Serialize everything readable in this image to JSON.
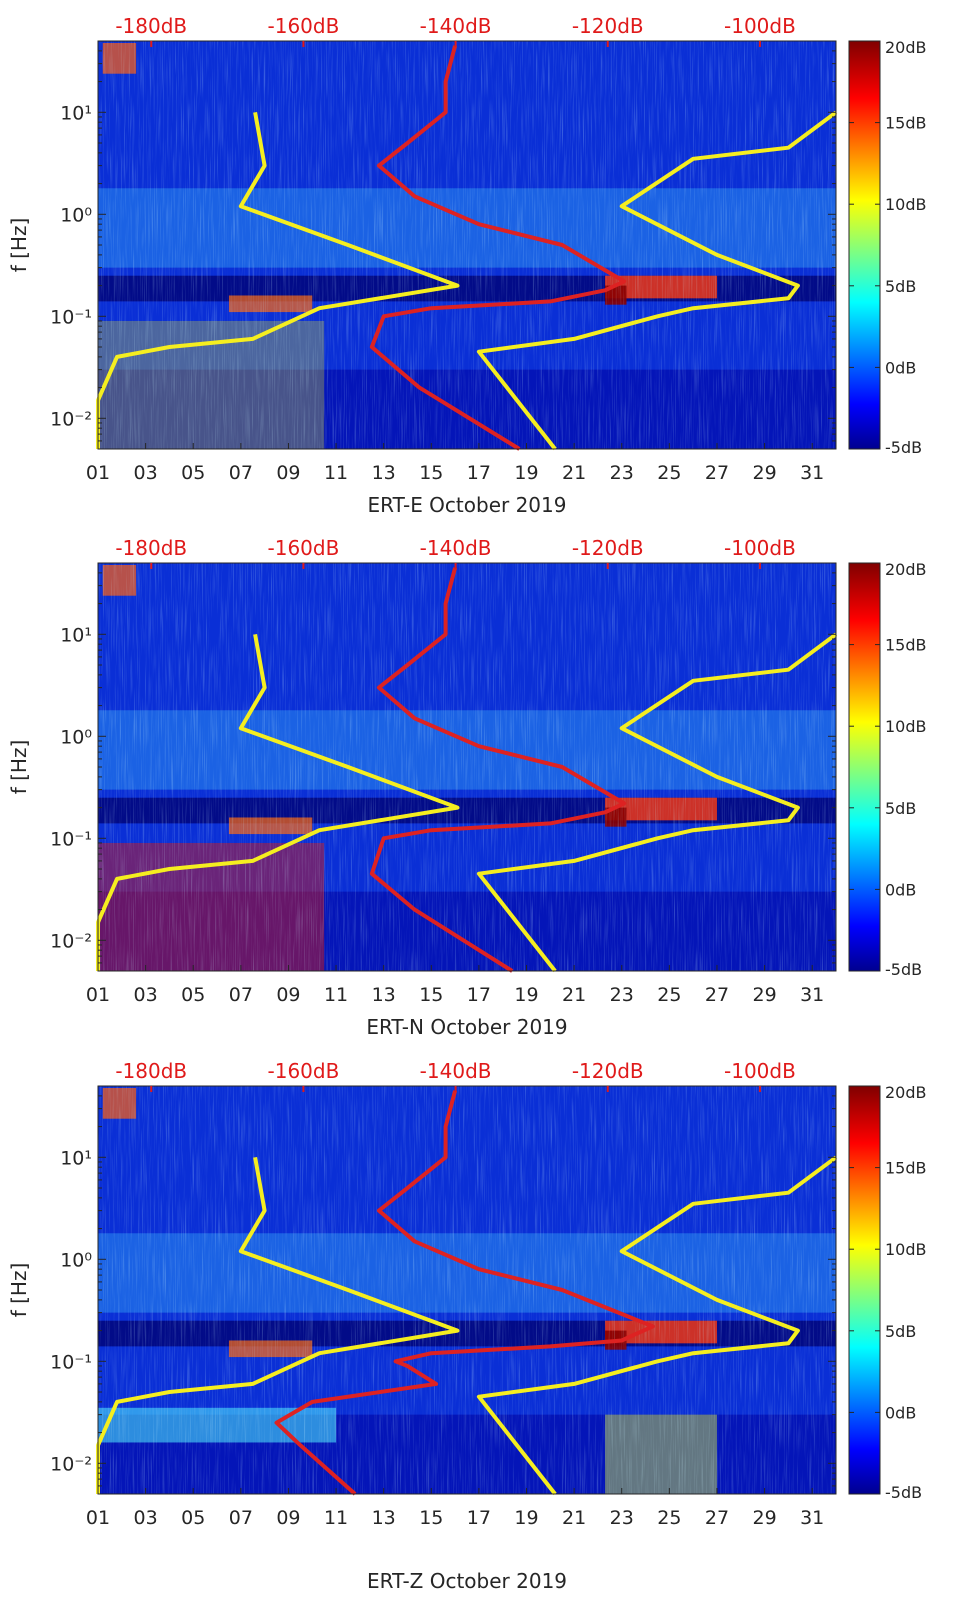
{
  "chart_data": [
    {
      "type": "heatmap",
      "title": "ERT-E October 2019",
      "xlabel": "ERT-E October 2019",
      "ylabel": "f [Hz]",
      "x_ticks": [
        "01",
        "03",
        "05",
        "07",
        "09",
        "11",
        "13",
        "15",
        "17",
        "19",
        "21",
        "23",
        "25",
        "27",
        "29",
        "31"
      ],
      "x_tick_days": [
        1,
        3,
        5,
        7,
        9,
        11,
        13,
        15,
        17,
        19,
        21,
        23,
        25,
        27,
        29,
        31
      ],
      "xlim": [
        1,
        32
      ],
      "y_ticks": [
        "10⁻²",
        "10⁻¹",
        "10⁰",
        "10¹"
      ],
      "y_tick_values": [
        0.01,
        0.1,
        1,
        10
      ],
      "ylim": [
        0.005,
        50
      ],
      "yscale": "log",
      "top_axis_ticks": [
        "-180dB",
        "-160dB",
        "-140dB",
        "-120dB",
        "-100dB"
      ],
      "top_axis_values": [
        -180,
        -160,
        -140,
        -120,
        -100
      ],
      "top_axis_range": [
        -187,
        -90
      ],
      "colorbar_ticks": [
        "20dB",
        "15dB",
        "10dB",
        "5dB",
        "0dB",
        "-5dB"
      ],
      "colorbar_values": [
        20,
        15,
        10,
        5,
        0,
        -5
      ],
      "colorbar_range": [
        -5,
        20
      ],
      "series": [
        {
          "name": "noise-model-low",
          "color": "#f5ee20",
          "points": [
            [
              1.0,
              0.005
            ],
            [
              1.0,
              0.015
            ],
            [
              1.8,
              0.04
            ],
            [
              4,
              0.05
            ],
            [
              7.5,
              0.06
            ],
            [
              10.3,
              0.12
            ],
            [
              16.1,
              0.2
            ],
            [
              11.5,
              0.5
            ],
            [
              7,
              1.2
            ],
            [
              8.0,
              3
            ],
            [
              7.6,
              10
            ]
          ]
        },
        {
          "name": "noise-model-high",
          "color": "#f5ee20",
          "points": [
            [
              20.2,
              0.005
            ],
            [
              17,
              0.045
            ],
            [
              21,
              0.06
            ],
            [
              24.5,
              0.1
            ],
            [
              26,
              0.12
            ],
            [
              30,
              0.15
            ],
            [
              30.4,
              0.2
            ],
            [
              27,
              0.4
            ],
            [
              23,
              1.2
            ],
            [
              26,
              3.5
            ],
            [
              30,
              4.5
            ],
            [
              32,
              10
            ]
          ]
        },
        {
          "name": "median-psd",
          "color": "#dd2222",
          "points": [
            [
              18.7,
              0.005
            ],
            [
              14.5,
              0.02
            ],
            [
              12.5,
              0.05
            ],
            [
              13,
              0.1
            ],
            [
              15,
              0.12
            ],
            [
              20,
              0.14
            ],
            [
              22.3,
              0.18
            ],
            [
              23.1,
              0.22
            ],
            [
              20.5,
              0.5
            ],
            [
              17,
              0.8
            ],
            [
              14.3,
              1.5
            ],
            [
              12.8,
              3
            ],
            [
              14,
              5
            ],
            [
              15.6,
              10
            ],
            [
              15.6,
              20
            ],
            [
              16,
              45
            ]
          ]
        }
      ]
    },
    {
      "type": "heatmap",
      "title": "ERT-N October 2019",
      "xlabel": "ERT-N October 2019",
      "ylabel": "f [Hz]",
      "x_ticks": [
        "01",
        "03",
        "05",
        "07",
        "09",
        "11",
        "13",
        "15",
        "17",
        "19",
        "21",
        "23",
        "25",
        "27",
        "29",
        "31"
      ],
      "x_tick_days": [
        1,
        3,
        5,
        7,
        9,
        11,
        13,
        15,
        17,
        19,
        21,
        23,
        25,
        27,
        29,
        31
      ],
      "xlim": [
        1,
        32
      ],
      "y_ticks": [
        "10⁻²",
        "10⁻¹",
        "10⁰",
        "10¹"
      ],
      "y_tick_values": [
        0.01,
        0.1,
        1,
        10
      ],
      "ylim": [
        0.005,
        50
      ],
      "yscale": "log",
      "top_axis_ticks": [
        "-180dB",
        "-160dB",
        "-140dB",
        "-120dB",
        "-100dB"
      ],
      "top_axis_values": [
        -180,
        -160,
        -140,
        -120,
        -100
      ],
      "top_axis_range": [
        -187,
        -90
      ],
      "colorbar_ticks": [
        "20dB",
        "15dB",
        "10dB",
        "5dB",
        "0dB",
        "-5dB"
      ],
      "colorbar_values": [
        20,
        15,
        10,
        5,
        0,
        -5
      ],
      "colorbar_range": [
        -5,
        20
      ],
      "series": [
        {
          "name": "noise-model-low",
          "color": "#f5ee20",
          "points": [
            [
              1.0,
              0.005
            ],
            [
              1.0,
              0.015
            ],
            [
              1.8,
              0.04
            ],
            [
              4,
              0.05
            ],
            [
              7.5,
              0.06
            ],
            [
              10.3,
              0.12
            ],
            [
              16.1,
              0.2
            ],
            [
              11.5,
              0.5
            ],
            [
              7,
              1.2
            ],
            [
              8.0,
              3
            ],
            [
              7.6,
              10
            ]
          ]
        },
        {
          "name": "noise-model-high",
          "color": "#f5ee20",
          "points": [
            [
              20.2,
              0.005
            ],
            [
              17,
              0.045
            ],
            [
              21,
              0.06
            ],
            [
              24.5,
              0.1
            ],
            [
              26,
              0.12
            ],
            [
              30,
              0.15
            ],
            [
              30.4,
              0.2
            ],
            [
              27,
              0.4
            ],
            [
              23,
              1.2
            ],
            [
              26,
              3.5
            ],
            [
              30,
              4.5
            ],
            [
              32,
              10
            ]
          ]
        },
        {
          "name": "median-psd",
          "color": "#dd2222",
          "points": [
            [
              18.4,
              0.005
            ],
            [
              14.3,
              0.02
            ],
            [
              12.5,
              0.045
            ],
            [
              13,
              0.1
            ],
            [
              15,
              0.12
            ],
            [
              20,
              0.14
            ],
            [
              22.3,
              0.18
            ],
            [
              23.1,
              0.22
            ],
            [
              20.5,
              0.5
            ],
            [
              17,
              0.8
            ],
            [
              14.3,
              1.5
            ],
            [
              12.8,
              3
            ],
            [
              14,
              5
            ],
            [
              15.6,
              10
            ],
            [
              15.6,
              20
            ],
            [
              16,
              45
            ]
          ]
        }
      ]
    },
    {
      "type": "heatmap",
      "title": "ERT-Z October 2019",
      "xlabel": "ERT-Z October 2019",
      "ylabel": "f [Hz]",
      "x_ticks": [
        "01",
        "03",
        "05",
        "07",
        "09",
        "11",
        "13",
        "15",
        "17",
        "19",
        "21",
        "23",
        "25",
        "27",
        "29",
        "31"
      ],
      "x_tick_days": [
        1,
        3,
        5,
        7,
        9,
        11,
        13,
        15,
        17,
        19,
        21,
        23,
        25,
        27,
        29,
        31
      ],
      "xlim": [
        1,
        32
      ],
      "y_ticks": [
        "10⁻²",
        "10⁻¹",
        "10⁰",
        "10¹"
      ],
      "y_tick_values": [
        0.01,
        0.1,
        1,
        10
      ],
      "ylim": [
        0.005,
        50
      ],
      "yscale": "log",
      "top_axis_ticks": [
        "-180dB",
        "-160dB",
        "-140dB",
        "-120dB",
        "-100dB"
      ],
      "top_axis_values": [
        -180,
        -160,
        -140,
        -120,
        -100
      ],
      "top_axis_range": [
        -187,
        -90
      ],
      "colorbar_ticks": [
        "20dB",
        "15dB",
        "10dB",
        "5dB",
        "0dB",
        "-5dB"
      ],
      "colorbar_values": [
        20,
        15,
        10,
        5,
        0,
        -5
      ],
      "colorbar_range": [
        -5,
        20
      ],
      "series": [
        {
          "name": "noise-model-low",
          "color": "#f5ee20",
          "points": [
            [
              1.0,
              0.005
            ],
            [
              1.0,
              0.015
            ],
            [
              1.8,
              0.04
            ],
            [
              4,
              0.05
            ],
            [
              7.5,
              0.06
            ],
            [
              10.3,
              0.12
            ],
            [
              16.1,
              0.2
            ],
            [
              11.5,
              0.5
            ],
            [
              7,
              1.2
            ],
            [
              8.0,
              3
            ],
            [
              7.6,
              10
            ]
          ]
        },
        {
          "name": "noise-model-high",
          "color": "#f5ee20",
          "points": [
            [
              20.2,
              0.005
            ],
            [
              17,
              0.045
            ],
            [
              21,
              0.06
            ],
            [
              24.5,
              0.1
            ],
            [
              26,
              0.12
            ],
            [
              30,
              0.15
            ],
            [
              30.4,
              0.2
            ],
            [
              27,
              0.4
            ],
            [
              23,
              1.2
            ],
            [
              26,
              3.5
            ],
            [
              30,
              4.5
            ],
            [
              32,
              10
            ]
          ]
        },
        {
          "name": "median-psd",
          "color": "#dd2222",
          "points": [
            [
              11.8,
              0.005
            ],
            [
              9.5,
              0.015
            ],
            [
              8.5,
              0.025
            ],
            [
              10,
              0.04
            ],
            [
              15.2,
              0.06
            ],
            [
              14,
              0.09
            ],
            [
              13.5,
              0.1
            ],
            [
              15,
              0.12
            ],
            [
              20,
              0.14
            ],
            [
              23,
              0.16
            ],
            [
              24.3,
              0.22
            ],
            [
              20.5,
              0.5
            ],
            [
              17,
              0.8
            ],
            [
              14.3,
              1.5
            ],
            [
              12.8,
              3
            ],
            [
              14,
              5
            ],
            [
              15.6,
              10
            ],
            [
              15.6,
              20
            ],
            [
              16,
              45
            ]
          ]
        }
      ]
    }
  ]
}
